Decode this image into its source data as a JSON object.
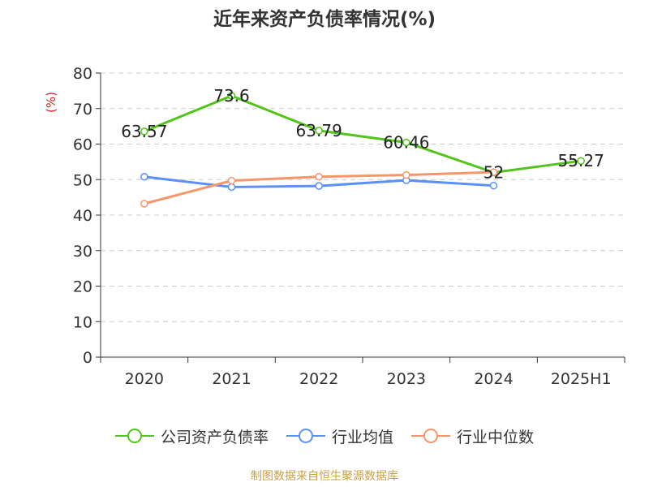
{
  "chart_data": {
    "type": "line",
    "title": "近年来资产负债率情况(%)",
    "ylabel": "(%)",
    "xlabel": "",
    "categories": [
      "2020",
      "2021",
      "2022",
      "2023",
      "2024",
      "2025H1"
    ],
    "ylim": [
      0,
      80
    ],
    "yticks": [
      0,
      10,
      20,
      30,
      40,
      50,
      60,
      70,
      80
    ],
    "grid": "horizontal dashed",
    "legend_position": "bottom",
    "series": [
      {
        "name": "公司资产负债率",
        "color": "#52c41a",
        "values": [
          63.57,
          73.6,
          63.79,
          60.46,
          52,
          55.27
        ],
        "labels": [
          "63.57",
          "73.6",
          "63.79",
          "60.46",
          "52",
          "55.27"
        ]
      },
      {
        "name": "行业均值",
        "color": "#5b8ff9",
        "values": [
          50.8,
          47.9,
          48.2,
          49.8,
          48.3,
          null
        ]
      },
      {
        "name": "行业中位数",
        "color": "#f6946a",
        "values": [
          43.2,
          49.7,
          50.8,
          51.3,
          52.1,
          null
        ]
      }
    ]
  },
  "source_note": "制图数据来自恒生聚源数据库",
  "colors": {
    "axis_label_red": "#e02020",
    "axis": "#333333",
    "grid": "#cccccc"
  }
}
